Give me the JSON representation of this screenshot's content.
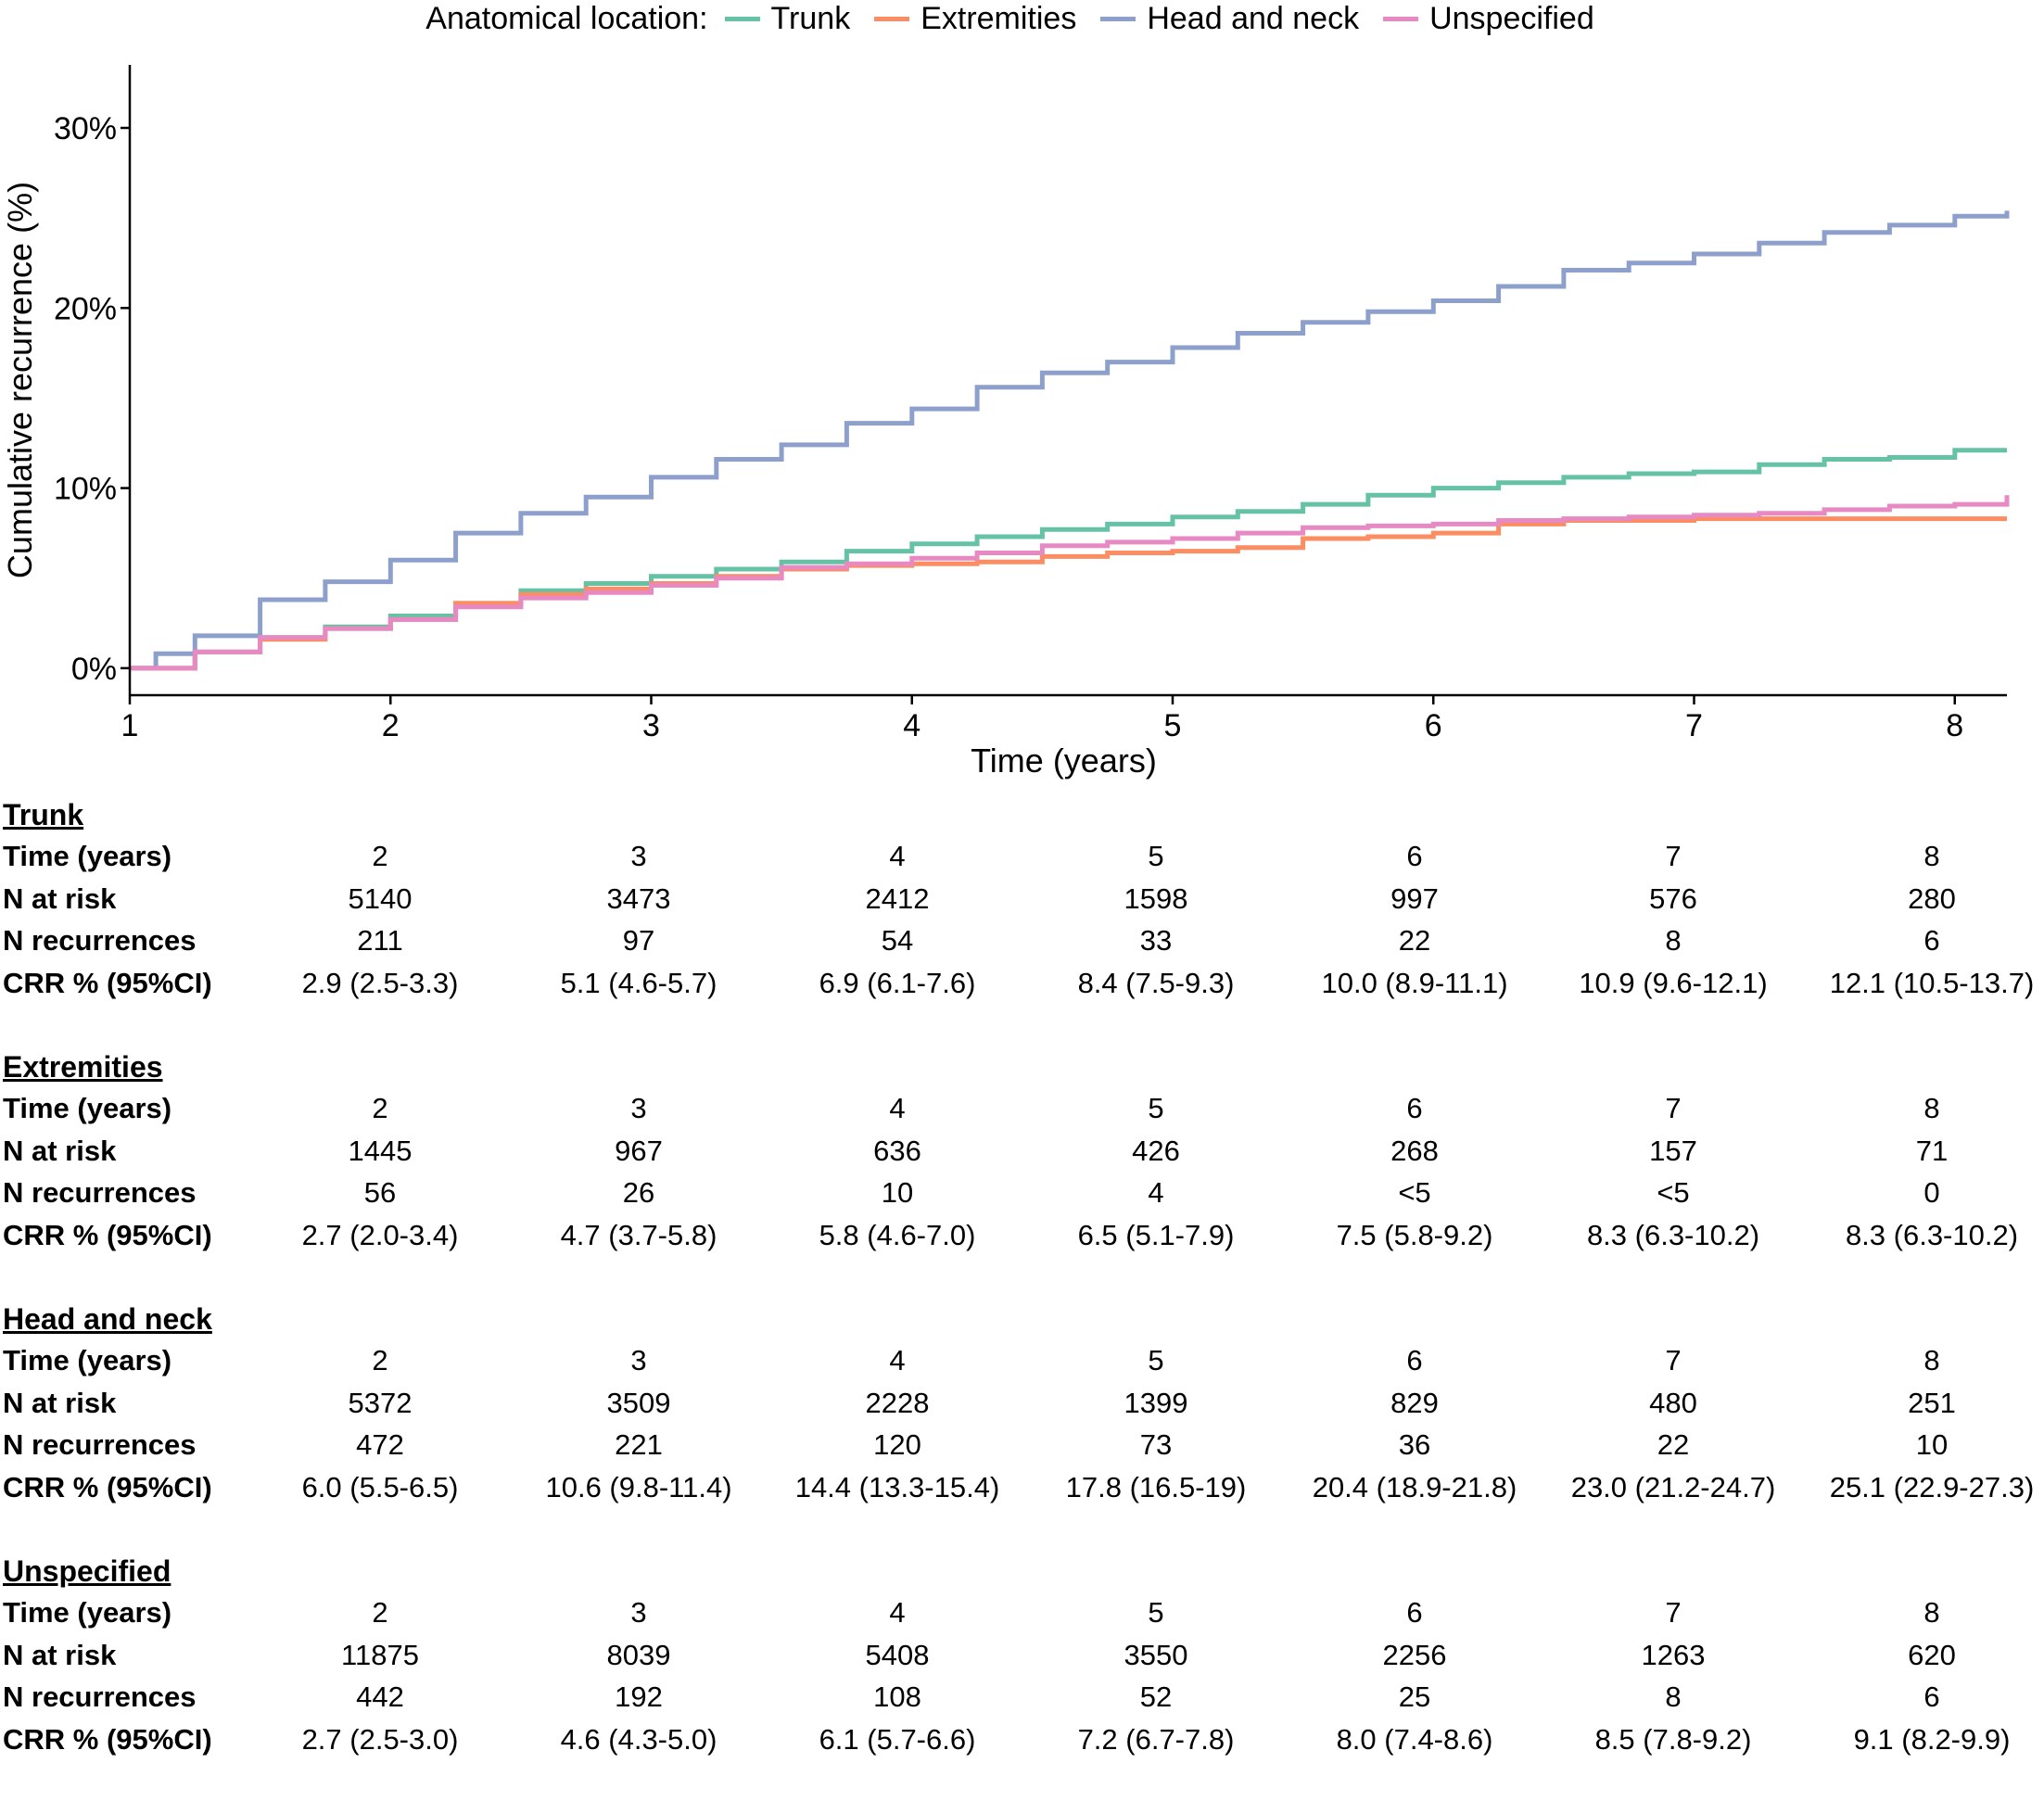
{
  "chart_data": {
    "type": "line",
    "title": "",
    "legend_title": "Anatomical location:",
    "legend_position": "top",
    "xlabel": "Time (years)",
    "ylabel": "Cumulative recurrence (%)",
    "xlim": [
      1,
      8.2
    ],
    "ylim": [
      -1.5,
      33.5
    ],
    "xticks": [
      1,
      2,
      3,
      4,
      5,
      6,
      7,
      8
    ],
    "xtick_labels": [
      "1",
      "2",
      "3",
      "4",
      "5",
      "6",
      "7",
      "8"
    ],
    "yticks": [
      0,
      10,
      20,
      30
    ],
    "ytick_labels": [
      "0%",
      "10%",
      "20%",
      "30%"
    ],
    "grid": false,
    "series": [
      {
        "name": "Trunk",
        "color": "#66c2a5",
        "points": [
          [
            1,
            0
          ],
          [
            1.25,
            0.9
          ],
          [
            1.5,
            1.7
          ],
          [
            1.75,
            2.3
          ],
          [
            2,
            2.9
          ],
          [
            2.25,
            3.6
          ],
          [
            2.5,
            4.3
          ],
          [
            2.75,
            4.7
          ],
          [
            3,
            5.1
          ],
          [
            3.25,
            5.5
          ],
          [
            3.5,
            5.9
          ],
          [
            3.75,
            6.5
          ],
          [
            4,
            6.9
          ],
          [
            4.25,
            7.3
          ],
          [
            4.5,
            7.7
          ],
          [
            4.75,
            8.0
          ],
          [
            5,
            8.4
          ],
          [
            5.25,
            8.7
          ],
          [
            5.5,
            9.1
          ],
          [
            5.75,
            9.6
          ],
          [
            6,
            10.0
          ],
          [
            6.25,
            10.3
          ],
          [
            6.5,
            10.6
          ],
          [
            6.75,
            10.8
          ],
          [
            7,
            10.9
          ],
          [
            7.25,
            11.3
          ],
          [
            7.5,
            11.6
          ],
          [
            7.75,
            11.7
          ],
          [
            8,
            12.1
          ],
          [
            8.2,
            12.1
          ]
        ]
      },
      {
        "name": "Extremities",
        "color": "#fc8d62",
        "points": [
          [
            1,
            0
          ],
          [
            1.25,
            0.9
          ],
          [
            1.5,
            1.6
          ],
          [
            1.75,
            2.2
          ],
          [
            2,
            2.7
          ],
          [
            2.25,
            3.6
          ],
          [
            2.5,
            4.1
          ],
          [
            2.75,
            4.4
          ],
          [
            3,
            4.7
          ],
          [
            3.25,
            5.1
          ],
          [
            3.5,
            5.5
          ],
          [
            3.75,
            5.7
          ],
          [
            4,
            5.8
          ],
          [
            4.25,
            5.9
          ],
          [
            4.5,
            6.2
          ],
          [
            4.75,
            6.4
          ],
          [
            5,
            6.5
          ],
          [
            5.25,
            6.7
          ],
          [
            5.5,
            7.2
          ],
          [
            5.75,
            7.3
          ],
          [
            6,
            7.5
          ],
          [
            6.25,
            8.0
          ],
          [
            6.5,
            8.2
          ],
          [
            6.75,
            8.2
          ],
          [
            7,
            8.3
          ],
          [
            7.5,
            8.3
          ],
          [
            8,
            8.3
          ],
          [
            8.2,
            8.3
          ]
        ]
      },
      {
        "name": "Head and neck",
        "color": "#8da0cb",
        "points": [
          [
            1,
            0
          ],
          [
            1.1,
            0.8
          ],
          [
            1.25,
            1.8
          ],
          [
            1.5,
            3.8
          ],
          [
            1.75,
            4.8
          ],
          [
            2,
            6.0
          ],
          [
            2.25,
            7.5
          ],
          [
            2.5,
            8.6
          ],
          [
            2.75,
            9.5
          ],
          [
            3,
            10.6
          ],
          [
            3.25,
            11.6
          ],
          [
            3.5,
            12.4
          ],
          [
            3.75,
            13.6
          ],
          [
            4,
            14.4
          ],
          [
            4.25,
            15.6
          ],
          [
            4.5,
            16.4
          ],
          [
            4.75,
            17.0
          ],
          [
            5,
            17.8
          ],
          [
            5.25,
            18.6
          ],
          [
            5.5,
            19.2
          ],
          [
            5.75,
            19.8
          ],
          [
            6,
            20.4
          ],
          [
            6.25,
            21.2
          ],
          [
            6.5,
            22.1
          ],
          [
            6.75,
            22.5
          ],
          [
            7,
            23.0
          ],
          [
            7.25,
            23.6
          ],
          [
            7.5,
            24.2
          ],
          [
            7.75,
            24.6
          ],
          [
            8,
            25.1
          ],
          [
            8.2,
            25.4
          ]
        ]
      },
      {
        "name": "Unspecified",
        "color": "#e78ac3",
        "points": [
          [
            1,
            0
          ],
          [
            1.25,
            0.9
          ],
          [
            1.5,
            1.7
          ],
          [
            1.75,
            2.2
          ],
          [
            2,
            2.7
          ],
          [
            2.25,
            3.4
          ],
          [
            2.5,
            3.9
          ],
          [
            2.75,
            4.2
          ],
          [
            3,
            4.6
          ],
          [
            3.25,
            5.0
          ],
          [
            3.5,
            5.6
          ],
          [
            3.75,
            5.8
          ],
          [
            4,
            6.1
          ],
          [
            4.25,
            6.4
          ],
          [
            4.5,
            6.8
          ],
          [
            4.75,
            7.0
          ],
          [
            5,
            7.2
          ],
          [
            5.25,
            7.5
          ],
          [
            5.5,
            7.8
          ],
          [
            5.75,
            7.9
          ],
          [
            6,
            8.0
          ],
          [
            6.25,
            8.2
          ],
          [
            6.5,
            8.3
          ],
          [
            6.75,
            8.4
          ],
          [
            7,
            8.5
          ],
          [
            7.25,
            8.6
          ],
          [
            7.5,
            8.8
          ],
          [
            7.75,
            9.0
          ],
          [
            8,
            9.1
          ],
          [
            8.2,
            9.6
          ]
        ]
      }
    ]
  },
  "risk_tables": [
    {
      "title": "Trunk",
      "rows": [
        {
          "label": "Time (years)",
          "values": [
            "2",
            "3",
            "4",
            "5",
            "6",
            "7",
            "8"
          ]
        },
        {
          "label": "N at risk",
          "values": [
            "5140",
            "3473",
            "2412",
            "1598",
            "997",
            "576",
            "280"
          ]
        },
        {
          "label": "N recurrences",
          "values": [
            "211",
            "97",
            "54",
            "33",
            "22",
            "8",
            "6"
          ]
        },
        {
          "label": "CRR % (95%CI)",
          "values": [
            "2.9 (2.5-3.3)",
            "5.1 (4.6-5.7)",
            "6.9 (6.1-7.6)",
            "8.4 (7.5-9.3)",
            "10.0 (8.9-11.1)",
            "10.9 (9.6-12.1)",
            "12.1 (10.5-13.7)"
          ]
        }
      ]
    },
    {
      "title": "Extremities",
      "rows": [
        {
          "label": "Time (years)",
          "values": [
            "2",
            "3",
            "4",
            "5",
            "6",
            "7",
            "8"
          ]
        },
        {
          "label": "N at risk",
          "values": [
            "1445",
            "967",
            "636",
            "426",
            "268",
            "157",
            "71"
          ]
        },
        {
          "label": "N recurrences",
          "values": [
            "56",
            "26",
            "10",
            "4",
            "<5",
            "<5",
            "0"
          ]
        },
        {
          "label": "CRR % (95%CI)",
          "values": [
            "2.7 (2.0-3.4)",
            "4.7 (3.7-5.8)",
            "5.8 (4.6-7.0)",
            "6.5 (5.1-7.9)",
            "7.5 (5.8-9.2)",
            "8.3 (6.3-10.2)",
            "8.3 (6.3-10.2)"
          ]
        }
      ]
    },
    {
      "title": "Head and neck",
      "rows": [
        {
          "label": "Time (years)",
          "values": [
            "2",
            "3",
            "4",
            "5",
            "6",
            "7",
            "8"
          ]
        },
        {
          "label": "N at risk",
          "values": [
            "5372",
            "3509",
            "2228",
            "1399",
            "829",
            "480",
            "251"
          ]
        },
        {
          "label": "N recurrences",
          "values": [
            "472",
            "221",
            "120",
            "73",
            "36",
            "22",
            "10"
          ]
        },
        {
          "label": "CRR % (95%CI)",
          "values": [
            "6.0 (5.5-6.5)",
            "10.6 (9.8-11.4)",
            "14.4 (13.3-15.4)",
            "17.8 (16.5-19)",
            "20.4 (18.9-21.8)",
            "23.0 (21.2-24.7)",
            "25.1 (22.9-27.3)"
          ]
        }
      ]
    },
    {
      "title": "Unspecified",
      "rows": [
        {
          "label": "Time (years)",
          "values": [
            "2",
            "3",
            "4",
            "5",
            "6",
            "7",
            "8"
          ]
        },
        {
          "label": "N at risk",
          "values": [
            "11875",
            "8039",
            "5408",
            "3550",
            "2256",
            "1263",
            "620"
          ]
        },
        {
          "label": "N recurrences",
          "values": [
            "442",
            "192",
            "108",
            "52",
            "25",
            "8",
            "6"
          ]
        },
        {
          "label": "CRR % (95%CI)",
          "values": [
            "2.7 (2.5-3.0)",
            "4.6 (4.3-5.0)",
            "6.1 (5.7-6.6)",
            "7.2 (6.7-7.8)",
            "8.0 (7.4-8.6)",
            "8.5 (7.8-9.2)",
            "9.1 (8.2-9.9)"
          ]
        }
      ]
    }
  ]
}
